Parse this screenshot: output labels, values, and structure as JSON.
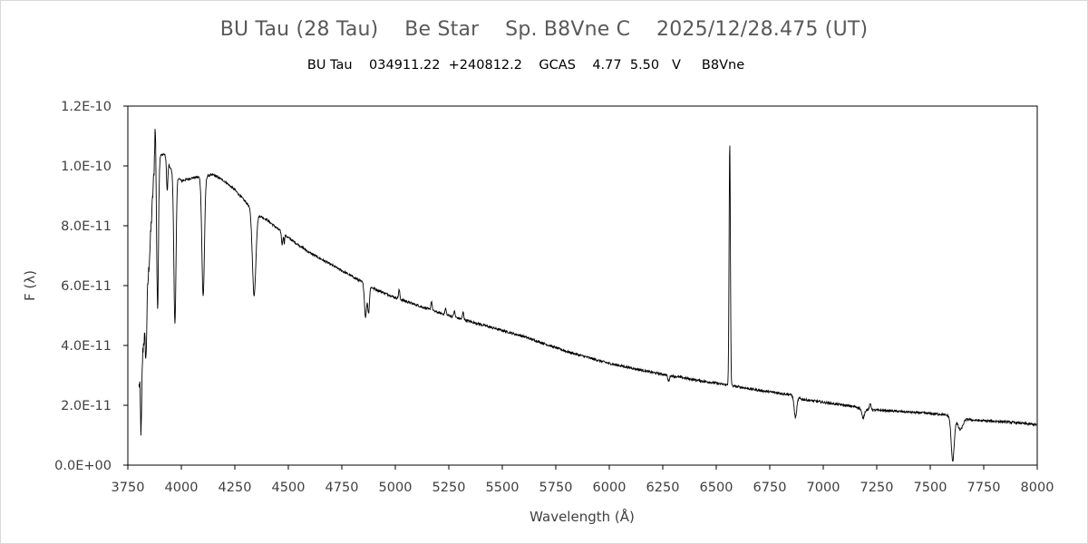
{
  "chart_data": {
    "type": "line",
    "title": "BU Tau (28 Tau)    Be Star    Sp. B8Vne C    2025/12/28.475 (UT)",
    "subtitle": "BU Tau    034911.22  +240812.2    GCAS    4.77  5.50   V     B8Vne",
    "xlabel": "Wavelength (Å)",
    "ylabel": "F (λ)",
    "xlim": [
      3750,
      8000
    ],
    "ylim": [
      0,
      1.2e-10
    ],
    "x_ticks": [
      3750,
      4000,
      4250,
      4500,
      4750,
      5000,
      5250,
      5500,
      5750,
      6000,
      6250,
      6500,
      6750,
      7000,
      7250,
      7500,
      7750,
      8000
    ],
    "x_tick_labels": [
      "3750",
      "4000",
      "4250",
      "4500",
      "4750",
      "5000",
      "5250",
      "5500",
      "5750",
      "6000",
      "6250",
      "6500",
      "6750",
      "7000",
      "7250",
      "7500",
      "7750",
      "8000"
    ],
    "y_ticks": [
      0,
      2e-11,
      4e-11,
      6e-11,
      8e-11,
      1e-10,
      1.2e-10
    ],
    "y_tick_labels": [
      "0.0E+00",
      "2.0E-11",
      "4.0E-11",
      "6.0E-11",
      "8.0E-11",
      "1.0E-10",
      "1.2E-10"
    ],
    "grid": false,
    "legend": "none",
    "series_color": "#000000",
    "continuum": [
      [
        3800,
        2.5e-11
      ],
      [
        3830,
        4.5e-11
      ],
      [
        3850,
        6.8e-11
      ],
      [
        3870,
        9.5e-11
      ],
      [
        3890,
        1.03e-10
      ],
      [
        3920,
        1.04e-10
      ],
      [
        3950,
        9.9e-11
      ],
      [
        4000,
        9.5e-11
      ],
      [
        4050,
        9.6e-11
      ],
      [
        4150,
        9.7e-11
      ],
      [
        4200,
        9.5e-11
      ],
      [
        4250,
        9.2e-11
      ],
      [
        4300,
        8.8e-11
      ],
      [
        4350,
        8.4e-11
      ],
      [
        4400,
        8.2e-11
      ],
      [
        4500,
        7.6e-11
      ],
      [
        4600,
        7.1e-11
      ],
      [
        4700,
        6.7e-11
      ],
      [
        4800,
        6.3e-11
      ],
      [
        4900,
        5.9e-11
      ],
      [
        5000,
        5.6e-11
      ],
      [
        5200,
        5.1e-11
      ],
      [
        5400,
        4.7e-11
      ],
      [
        5600,
        4.3e-11
      ],
      [
        5800,
        3.8e-11
      ],
      [
        6000,
        3.4e-11
      ],
      [
        6200,
        3.1e-11
      ],
      [
        6400,
        2.85e-11
      ],
      [
        6550,
        2.68e-11
      ],
      [
        6700,
        2.5e-11
      ],
      [
        6850,
        2.35e-11
      ],
      [
        6900,
        2.2e-11
      ],
      [
        7000,
        2.1e-11
      ],
      [
        7150,
        1.95e-11
      ],
      [
        7200,
        1.85e-11
      ],
      [
        7300,
        1.82e-11
      ],
      [
        7450,
        1.75e-11
      ],
      [
        7550,
        1.7e-11
      ],
      [
        7700,
        1.5e-11
      ],
      [
        7850,
        1.45e-11
      ],
      [
        8000,
        1.35e-11
      ]
    ],
    "features": [
      {
        "center": 3812,
        "amplitude": -2.2e-11,
        "width": 3
      },
      {
        "center": 3835,
        "amplitude": -1.5e-11,
        "width": 3
      },
      {
        "center": 3889,
        "amplitude": -5e-11,
        "width": 4
      },
      {
        "center": 3878,
        "amplitude": 1.5e-11,
        "width": 3
      },
      {
        "center": 3934,
        "amplitude": -1e-11,
        "width": 3
      },
      {
        "center": 3970,
        "amplitude": -5e-11,
        "width": 5
      },
      {
        "center": 4102,
        "amplitude": -4e-11,
        "width": 6
      },
      {
        "center": 4340,
        "amplitude": -2.8e-11,
        "width": 8
      },
      {
        "center": 4471,
        "amplitude": -4e-12,
        "width": 3
      },
      {
        "center": 4481,
        "amplitude": -3e-12,
        "width": 2
      },
      {
        "center": 4861,
        "amplitude": -1.1e-11,
        "width": 5
      },
      {
        "center": 4875,
        "amplitude": -9e-12,
        "width": 4
      },
      {
        "center": 5018,
        "amplitude": 3e-12,
        "width": 3
      },
      {
        "center": 5169,
        "amplitude": 3e-12,
        "width": 3
      },
      {
        "center": 5235,
        "amplitude": 2e-12,
        "width": 3
      },
      {
        "center": 5276,
        "amplitude": 2e-12,
        "width": 3
      },
      {
        "center": 5317,
        "amplitude": 2.5e-12,
        "width": 3
      },
      {
        "center": 6277,
        "amplitude": -2e-12,
        "width": 4
      },
      {
        "center": 6563,
        "amplitude": 8.1e-11,
        "width": 3
      },
      {
        "center": 6870,
        "amplitude": -7e-12,
        "width": 6
      },
      {
        "center": 7186,
        "amplitude": -3e-12,
        "width": 6
      },
      {
        "center": 7220,
        "amplitude": 2e-12,
        "width": 4
      },
      {
        "center": 7605,
        "amplitude": -1.5e-11,
        "width": 7
      },
      {
        "center": 7640,
        "amplitude": -4e-12,
        "width": 12
      }
    ]
  }
}
